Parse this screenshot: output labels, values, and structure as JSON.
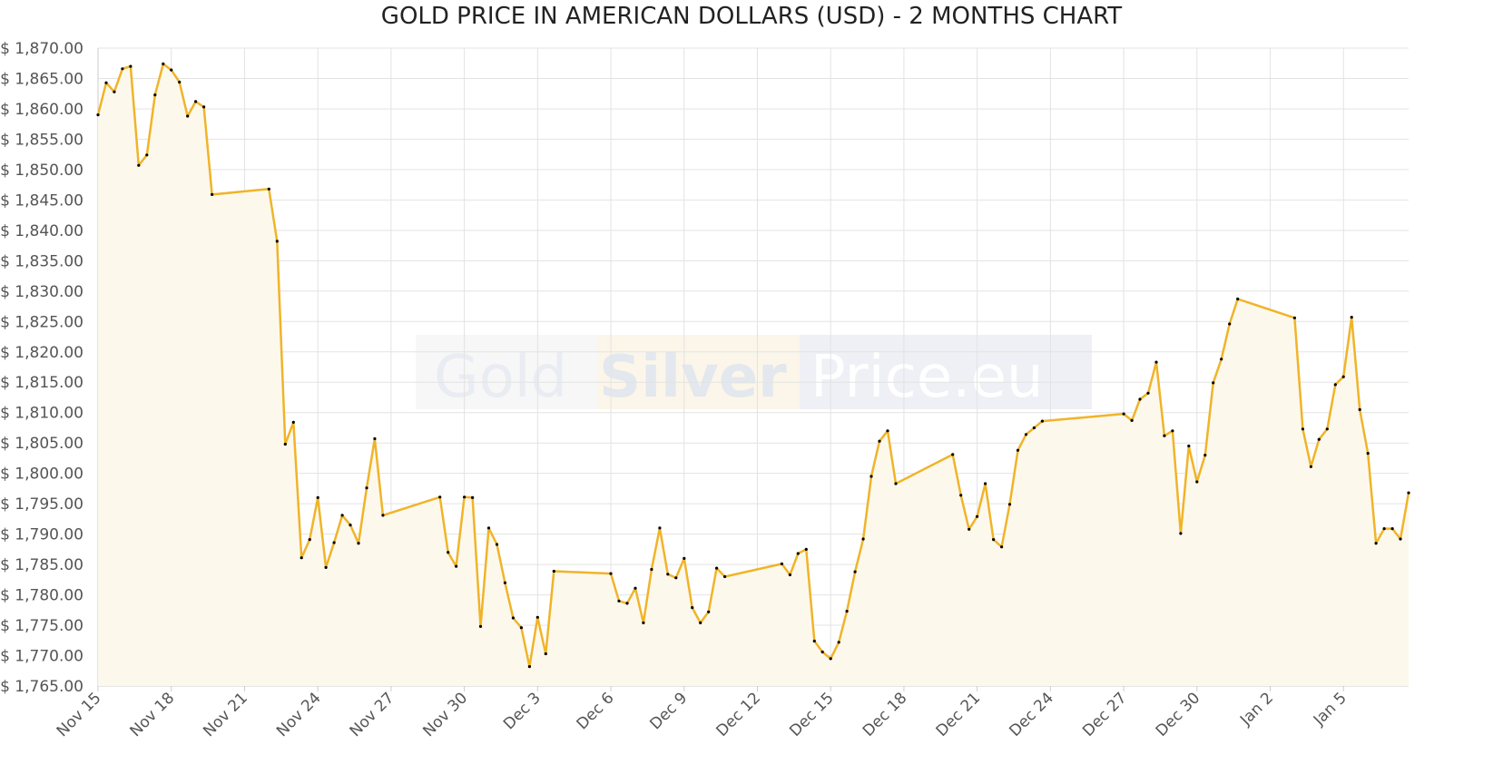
{
  "title": "GOLD PRICE IN AMERICAN DOLLARS (USD) - 2 MONTHS CHART",
  "watermark": {
    "parts": [
      {
        "text": "Gold",
        "color": "#e9ecf2",
        "box": "#f7f7f7"
      },
      {
        "text": "Silver",
        "color": "#e3e7ee",
        "box": "#fbf6e9"
      },
      {
        "text": "Price.eu",
        "color": "#ffffff",
        "box": "#eef0f5"
      }
    ]
  },
  "colors": {
    "line": "#f0b429",
    "fill": "#fdf8ec",
    "marker": "#000000",
    "grid": "#e3e3e3",
    "axis": "#cccccc"
  },
  "chart_data": {
    "type": "area",
    "title": "GOLD PRICE IN AMERICAN DOLLARS (USD) - 2 MONTHS CHART",
    "xlabel": "",
    "ylabel": "",
    "ylim": [
      1765,
      1870
    ],
    "ytick_step": 5,
    "y_tick_labels": [
      "$ 1,765.00",
      "$ 1,770.00",
      "$ 1,775.00",
      "$ 1,780.00",
      "$ 1,785.00",
      "$ 1,790.00",
      "$ 1,795.00",
      "$ 1,800.00",
      "$ 1,805.00",
      "$ 1,810.00",
      "$ 1,815.00",
      "$ 1,820.00",
      "$ 1,825.00",
      "$ 1,830.00",
      "$ 1,835.00",
      "$ 1,840.00",
      "$ 1,845.00",
      "$ 1,850.00",
      "$ 1,855.00",
      "$ 1,860.00",
      "$ 1,865.00",
      "$ 1,870.00"
    ],
    "x_tick_labels": [
      "Nov 15",
      "Nov 18",
      "Nov 21",
      "Nov 24",
      "Nov 27",
      "Nov 30",
      "Dec 3",
      "Dec 6",
      "Dec 9",
      "Dec 12",
      "Dec 15",
      "Dec 18",
      "Dec 21",
      "Dec 24",
      "Dec 27",
      "Dec 30",
      "Jan 2",
      "Jan 5"
    ],
    "x_tick_dates": [
      "2021-11-15",
      "2021-11-18",
      "2021-11-21",
      "2021-11-24",
      "2021-11-27",
      "2021-11-30",
      "2021-12-03",
      "2021-12-06",
      "2021-12-09",
      "2021-12-12",
      "2021-12-15",
      "2021-12-18",
      "2021-12-21",
      "2021-12-24",
      "2021-12-27",
      "2021-12-30",
      "2022-01-02",
      "2022-01-05"
    ],
    "x_range": [
      "2021-11-15T00:00",
      "2022-01-07T16:00"
    ],
    "grid": true,
    "series": [
      {
        "points": [
          [
            "2021-11-15T00:00",
            1859.0
          ],
          [
            "2021-11-15T08:00",
            1864.3
          ],
          [
            "2021-11-15T16:00",
            1862.8
          ],
          [
            "2021-11-16T00:00",
            1866.6
          ],
          [
            "2021-11-16T08:00",
            1867.0
          ],
          [
            "2021-11-16T16:00",
            1850.7
          ],
          [
            "2021-11-17T00:00",
            1852.4
          ],
          [
            "2021-11-17T08:00",
            1862.3
          ],
          [
            "2021-11-17T16:00",
            1867.4
          ],
          [
            "2021-11-18T00:00",
            1866.4
          ],
          [
            "2021-11-18T08:00",
            1864.4
          ],
          [
            "2021-11-18T16:00",
            1858.8
          ],
          [
            "2021-11-19T00:00",
            1861.2
          ],
          [
            "2021-11-19T08:00",
            1860.3
          ],
          [
            "2021-11-19T16:00",
            1845.9
          ],
          [
            "2021-11-22T00:00",
            1846.8
          ],
          [
            "2021-11-22T08:00",
            1838.2
          ],
          [
            "2021-11-22T16:00",
            1804.8
          ],
          [
            "2021-11-23T00:00",
            1808.4
          ],
          [
            "2021-11-23T08:00",
            1786.1
          ],
          [
            "2021-11-23T16:00",
            1789.1
          ],
          [
            "2021-11-24T00:00",
            1796.0
          ],
          [
            "2021-11-24T08:00",
            1784.5
          ],
          [
            "2021-11-24T16:00",
            1788.6
          ],
          [
            "2021-11-25T00:00",
            1793.1
          ],
          [
            "2021-11-25T08:00",
            1791.5
          ],
          [
            "2021-11-25T16:00",
            1788.5
          ],
          [
            "2021-11-26T00:00",
            1797.6
          ],
          [
            "2021-11-26T08:00",
            1805.7
          ],
          [
            "2021-11-26T16:00",
            1793.1
          ],
          [
            "2021-11-29T00:00",
            1796.1
          ],
          [
            "2021-11-29T08:00",
            1787.0
          ],
          [
            "2021-11-29T16:00",
            1784.7
          ],
          [
            "2021-11-30T00:00",
            1796.1
          ],
          [
            "2021-11-30T08:00",
            1796.0
          ],
          [
            "2021-11-30T16:00",
            1774.8
          ],
          [
            "2021-12-01T00:00",
            1791.0
          ],
          [
            "2021-12-01T08:00",
            1788.3
          ],
          [
            "2021-12-01T16:00",
            1782.0
          ],
          [
            "2021-12-02T00:00",
            1776.2
          ],
          [
            "2021-12-02T08:00",
            1774.6
          ],
          [
            "2021-12-02T16:00",
            1768.2
          ],
          [
            "2021-12-03T00:00",
            1776.3
          ],
          [
            "2021-12-03T08:00",
            1770.3
          ],
          [
            "2021-12-03T16:00",
            1783.9
          ],
          [
            "2021-12-06T00:00",
            1783.5
          ],
          [
            "2021-12-06T08:00",
            1779.0
          ],
          [
            "2021-12-06T16:00",
            1778.6
          ],
          [
            "2021-12-07T00:00",
            1781.1
          ],
          [
            "2021-12-07T08:00",
            1775.4
          ],
          [
            "2021-12-07T16:00",
            1784.2
          ],
          [
            "2021-12-08T00:00",
            1791.0
          ],
          [
            "2021-12-08T08:00",
            1783.4
          ],
          [
            "2021-12-08T16:00",
            1782.8
          ],
          [
            "2021-12-09T00:00",
            1786.0
          ],
          [
            "2021-12-09T08:00",
            1777.9
          ],
          [
            "2021-12-09T16:00",
            1775.4
          ],
          [
            "2021-12-10T00:00",
            1777.2
          ],
          [
            "2021-12-10T08:00",
            1784.4
          ],
          [
            "2021-12-10T16:00",
            1783.0
          ],
          [
            "2021-12-13T00:00",
            1785.1
          ],
          [
            "2021-12-13T08:00",
            1783.3
          ],
          [
            "2021-12-13T16:00",
            1786.8
          ],
          [
            "2021-12-14T00:00",
            1787.5
          ],
          [
            "2021-12-14T08:00",
            1772.4
          ],
          [
            "2021-12-14T16:00",
            1770.6
          ],
          [
            "2021-12-15T00:00",
            1769.5
          ],
          [
            "2021-12-15T08:00",
            1772.2
          ],
          [
            "2021-12-15T16:00",
            1777.3
          ],
          [
            "2021-12-16T00:00",
            1783.8
          ],
          [
            "2021-12-16T08:00",
            1789.2
          ],
          [
            "2021-12-16T16:00",
            1799.5
          ],
          [
            "2021-12-17T00:00",
            1805.3
          ],
          [
            "2021-12-17T08:00",
            1807.0
          ],
          [
            "2021-12-17T16:00",
            1798.3
          ],
          [
            "2021-12-20T00:00",
            1803.1
          ],
          [
            "2021-12-20T08:00",
            1796.4
          ],
          [
            "2021-12-20T16:00",
            1790.8
          ],
          [
            "2021-12-21T00:00",
            1792.9
          ],
          [
            "2021-12-21T08:00",
            1798.3
          ],
          [
            "2021-12-21T16:00",
            1789.1
          ],
          [
            "2021-12-22T00:00",
            1787.9
          ],
          [
            "2021-12-22T08:00",
            1794.9
          ],
          [
            "2021-12-22T16:00",
            1803.8
          ],
          [
            "2021-12-23T00:00",
            1806.4
          ],
          [
            "2021-12-23T08:00",
            1807.5
          ],
          [
            "2021-12-23T16:00",
            1808.6
          ],
          [
            "2021-12-27T00:00",
            1809.8
          ],
          [
            "2021-12-27T08:00",
            1808.7
          ],
          [
            "2021-12-27T16:00",
            1812.2
          ],
          [
            "2021-12-28T00:00",
            1813.2
          ],
          [
            "2021-12-28T08:00",
            1818.3
          ],
          [
            "2021-12-28T16:00",
            1806.2
          ],
          [
            "2021-12-29T00:00",
            1807.0
          ],
          [
            "2021-12-29T08:00",
            1790.1
          ],
          [
            "2021-12-29T16:00",
            1804.5
          ],
          [
            "2021-12-30T00:00",
            1798.6
          ],
          [
            "2021-12-30T08:00",
            1803.0
          ],
          [
            "2021-12-30T16:00",
            1814.9
          ],
          [
            "2021-12-31T00:00",
            1818.8
          ],
          [
            "2021-12-31T08:00",
            1824.6
          ],
          [
            "2021-12-31T16:00",
            1828.7
          ],
          [
            "2022-01-03T00:00",
            1825.6
          ],
          [
            "2022-01-03T08:00",
            1807.3
          ],
          [
            "2022-01-03T16:00",
            1801.1
          ],
          [
            "2022-01-04T00:00",
            1805.6
          ],
          [
            "2022-01-04T08:00",
            1807.3
          ],
          [
            "2022-01-04T16:00",
            1814.6
          ],
          [
            "2022-01-05T00:00",
            1815.9
          ],
          [
            "2022-01-05T08:00",
            1825.7
          ],
          [
            "2022-01-05T16:00",
            1810.5
          ],
          [
            "2022-01-06T00:00",
            1803.3
          ],
          [
            "2022-01-06T08:00",
            1788.5
          ],
          [
            "2022-01-06T16:00",
            1790.9
          ],
          [
            "2022-01-07T00:00",
            1790.9
          ],
          [
            "2022-01-07T08:00",
            1789.2
          ],
          [
            "2022-01-07T16:00",
            1796.8
          ]
        ]
      }
    ]
  }
}
